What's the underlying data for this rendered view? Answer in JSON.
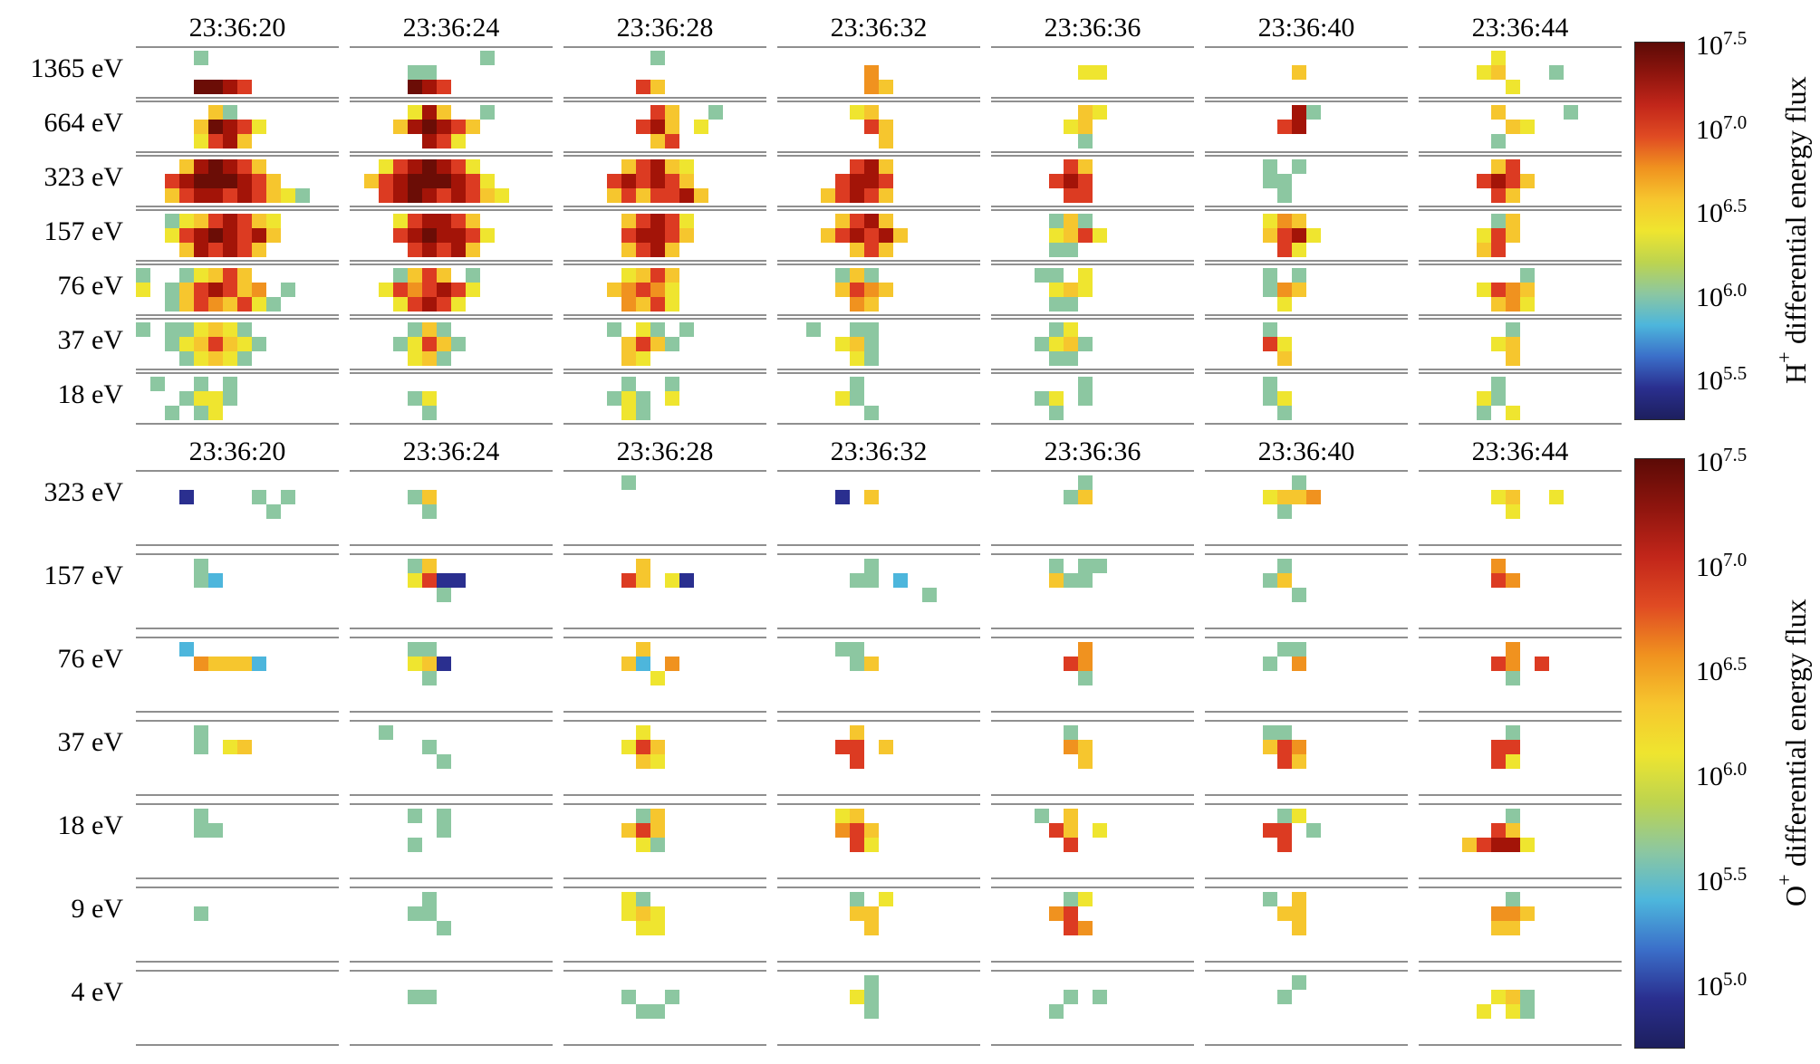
{
  "chart_data": {
    "type": "heatmap",
    "colorbar_gradient": [
      "#5c0a06",
      "#8f150e",
      "#c2261a",
      "#e04b23",
      "#f0921f",
      "#f6c62e",
      "#efe52f",
      "#bdd44f",
      "#8cc7a1",
      "#4db6dc",
      "#3b6fc9",
      "#2a2f8f",
      "#1d1f5e"
    ],
    "palette": {
      "1": {
        "hex": "#2a2f8f",
        "log10_flux": 5.0
      },
      "2": {
        "hex": "#3b6fc9",
        "log10_flux": 5.4
      },
      "3": {
        "hex": "#4db6dc",
        "log10_flux": 5.7
      },
      "4": {
        "hex": "#8cc7a1",
        "log10_flux": 6.0
      },
      "5": {
        "hex": "#bdd44f",
        "log10_flux": 6.2
      },
      "6": {
        "hex": "#efe52f",
        "log10_flux": 6.4
      },
      "7": {
        "hex": "#f6c62e",
        "log10_flux": 6.6
      },
      "8": {
        "hex": "#f0921f",
        "log10_flux": 6.9
      },
      "9": {
        "hex": "#dc3b22",
        "log10_flux": 7.1
      },
      "A": {
        "hex": "#a31408",
        "log10_flux": 7.35
      },
      "B": {
        "hex": "#6b0d06",
        "log10_flux": 7.5
      }
    },
    "layout": {
      "grid_color": "#8f8f8f",
      "background": "#ffffff",
      "colorbar_position": "right",
      "cells_per_column": 14,
      "rows_per_band": 3
    },
    "panels": [
      {
        "id": "hplus",
        "flux_label": {
          "ion": "H",
          "charge": "+",
          "text": "differential energy flux"
        },
        "time_labels": [
          "23:36:20",
          "23:36:24",
          "23:36:28",
          "23:36:32",
          "23:36:36",
          "23:36:40",
          "23:36:44"
        ],
        "colorbar_ticks": [
          {
            "base": "10",
            "exponent": "7.5"
          },
          {
            "base": "10",
            "exponent": "7.0"
          },
          {
            "base": "10",
            "exponent": "6.5"
          },
          {
            "base": "10",
            "exponent": "6.0"
          },
          {
            "base": "10",
            "exponent": "5.5"
          }
        ],
        "bands": [
          {
            "energy": "1365 eV",
            "rows": [
              "....4.........|.........4....|......4.......|..............|..............|..............|.....6........",
              "..............|....44........|..............|......8.......|......66......|......7.......|....67...4....",
              "....BBA9......|....BA9.......|.....97.......|......87......|..............|..............|......6......."
            ]
          },
          {
            "energy": "664 eV",
            "rows": [
              ".....74.......|....6A7..4....|......97..4...|.....67.......|......76......|......A4......|.....7....4...",
              "....7BA96.....|...7ABA97.....|.....9A7.6....|......97......|.....67.......|.....9A.......|......76......",
              "....69A7......|.....A96......|......79......|.......7......|......4.......|..............|.....4........"
            ]
          },
          {
            "energy": "323 eV",
            "rows": [
              "...7ABA97.....|..69ABA96.....|....79A76.....|.....9A7......|.....97.......|....4.4.......|.....79.......",
              "..9ABBBA97....|.79ABBBA96....|...9A9A97.....|....9AA9......|....9A9.......|....44........|....9A97......",
              "..79AA9A9764..|..9ABA9A976...|...79799A7....|...79A97......|.....99.......|.....4........|.....97......."
            ]
          },
          {
            "energy": "157 eV",
            "rows": [
              "..4679A976....|...69AA97.....|....79A96.....|....79A7......|....474.......|....687.......|.....47.......",
              "..69ABA9A7....|...9ABAA96....|....9AA97.....|...79A9A7.....|....6796......|....79A6......|....697.......",
              "...7A9A97.....|....9A9A7.....|....79A7......|.....797......|....44........|.....96.......|....79........"
            ]
          },
          {
            "energy": "76 eV",
            "rows": [
              "4..46797......|...4797.4.....|....6797......|....474.......|...44.6.......|....4.4.......|.......4......",
              "6.479A978.4...|..6989A96.....|...78986......|....7987......|....676.......|....487.......|....6987......",
              "..47987964....|...69A96......|....8796......|.....87.......|....44........|.....6........|.....786......"
            ]
          },
          {
            "energy": "37 eV",
            "rows": [
              "4.446764......|....474.......|...4.64.4.....|..4..44.......|....46........|....4.........|......4.......",
              "..4679764.....|...46974......|....7974......|....674.......|...4674.......|....96........|.....67.......",
              "...46764......|....674.......|....76........|.....64.......|....44........|.....7........|......7......."
            ]
          },
          {
            "energy": "18 eV",
            "rows": [
              ".4..4.4.......|..............|....4..4......|.....4........|......4.......|....4.........|.....4........",
              "...4664.......|....46........|...464.6......|....64........|...46.4.......|....46........|....64........",
              "..4.46........|.....4........|....64........|......4.......|....4.........|.....4........|....4.6......."
            ]
          }
        ]
      },
      {
        "id": "oplus",
        "flux_label": {
          "ion": "O",
          "charge": "+",
          "text": "differential energy flux"
        },
        "time_labels": [
          "23:36:20",
          "23:36:24",
          "23:36:28",
          "23:36:32",
          "23:36:36",
          "23:36:40",
          "23:36:44"
        ],
        "colorbar_ticks": [
          {
            "base": "10",
            "exponent": "7.5"
          },
          {
            "base": "10",
            "exponent": "7.0"
          },
          {
            "base": "10",
            "exponent": "6.5"
          },
          {
            "base": "10",
            "exponent": "6.0"
          },
          {
            "base": "10",
            "exponent": "5.5"
          },
          {
            "base": "10",
            "exponent": "5.0"
          }
        ],
        "bands": [
          {
            "energy": "323 eV",
            "rows": [
              "..............|..............|....4.........|..............|......4.......|......4.......|..............",
              "...1....4.4...|....47........|..............|....1.7.......|.....47.......|....6778......|.....67..6....",
              ".........4....|.....4........|..............|..............|..............|.....4........|......6......."
            ]
          },
          {
            "energy": "157 eV",
            "rows": [
              "....4.........|....47........|.....7........|......4.......|....4.44......|.....4........|.....8........",
              "....43........|....6911......|....97.61.....|.....44.3.....|....744.......|....47........|.....98.......",
              "..............|......4.......|..............|..........4...|..............|......4.......|.............."
            ]
          },
          {
            "energy": "76 eV",
            "rows": [
              "...3..........|....44........|.....7........|....44........|......8.......|.....44.......|......8.......",
              "....87773.....|....671.......|....73.8......|.....47.......|.....98.......|....4.8.......|.....98.9.....",
              "..............|.....4........|......6.......|..............|......4.......|..............|......4......."
            ]
          },
          {
            "energy": "37 eV",
            "rows": [
              "....4.........|..4...........|.....6........|.....7........|.....4........|....44........|......4.......",
              "....4.67......|.....4........|....697.......|....99.7......|.....87.......|....798.......|.....99.......",
              "..............|......4.......|.....76.......|.....9........|......7.......|.....97.......|.....96......."
            ]
          },
          {
            "energy": "18 eV",
            "rows": [
              "....4.........|....4.4.......|.....47.......|....67........|...4.7........|.....46.......|......4.......",
              "....44........|......4.......|....797.......|....897.......|....97.6......|....99.4......|.....97.......",
              "..............|....4.........|.....64.......|.....96.......|.....9........|.....9........|...79AA6......"
            ]
          },
          {
            "energy": "9 eV",
            "rows": [
              "..............|.....4........|....64........|.....4.6......|.....46.......|....4.7.......|......4.......",
              "....4.........|....44........|....676.......|.....77.......|....89........|.....77.......|.....887......",
              "..............|......4.......|.....66.......|......7.......|.....98.......|......7.......|.....77......."
            ]
          },
          {
            "energy": "4 eV",
            "rows": [
              "..............|..............|..............|......4.......|..............|......4.......|..............",
              "..............|....44........|....4..4......|.....64.......|.....4.4......|.....4........|.....674......",
              "..............|..............|.....44.......|......4.......|....4.........|..............|....6.64......"
            ]
          }
        ]
      }
    ]
  }
}
